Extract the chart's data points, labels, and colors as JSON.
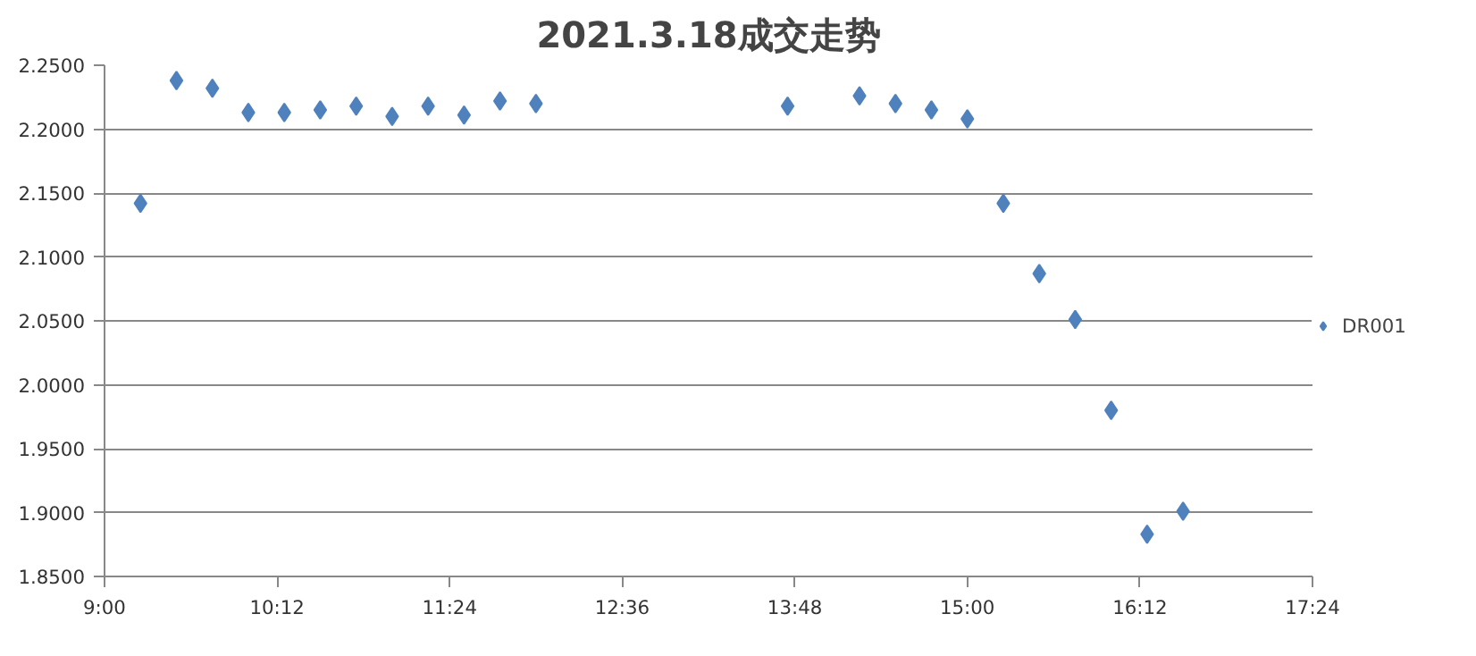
{
  "chart_data": {
    "type": "scatter",
    "title": "2021.3.18成交走势",
    "x": [
      9.25,
      9.5,
      9.75,
      10.0,
      10.25,
      10.5,
      10.75,
      11.0,
      11.25,
      11.5,
      11.75,
      12.0,
      13.75,
      14.25,
      14.5,
      14.75,
      15.0,
      15.25,
      15.5,
      15.75,
      16.0,
      16.25,
      16.5
    ],
    "series": [
      {
        "name": "DR001",
        "color": "#4f81bd",
        "values": [
          2.142,
          2.238,
          2.232,
          2.213,
          2.213,
          2.215,
          2.218,
          2.21,
          2.218,
          2.211,
          2.222,
          2.22,
          2.218,
          2.226,
          2.22,
          2.215,
          2.208,
          2.142,
          2.087,
          2.051,
          1.98,
          1.883,
          1.901
        ]
      }
    ],
    "xlim": [
      9,
      17.4
    ],
    "xticks": [
      {
        "value": 9,
        "label": "9:00"
      },
      {
        "value": 10.2,
        "label": "10:12"
      },
      {
        "value": 11.4,
        "label": "11:24"
      },
      {
        "value": 12.6,
        "label": "12:36"
      },
      {
        "value": 13.8,
        "label": "13:48"
      },
      {
        "value": 15,
        "label": "15:00"
      },
      {
        "value": 16.2,
        "label": "16:12"
      },
      {
        "value": 17.4,
        "label": "17:24"
      }
    ],
    "ylim": [
      1.85,
      2.25
    ],
    "yticks": [
      {
        "value": 1.85,
        "label": "1.8500"
      },
      {
        "value": 1.9,
        "label": "1.9000"
      },
      {
        "value": 1.95,
        "label": "1.9500"
      },
      {
        "value": 2.0,
        "label": "2.0000"
      },
      {
        "value": 2.05,
        "label": "2.0500"
      },
      {
        "value": 2.1,
        "label": "2.1000"
      },
      {
        "value": 2.15,
        "label": "2.1500"
      },
      {
        "value": 2.2,
        "label": "2.2000"
      },
      {
        "value": 2.25,
        "label": "2.2500"
      }
    ],
    "grid": "y",
    "legend": "right",
    "marker": "diamond"
  }
}
